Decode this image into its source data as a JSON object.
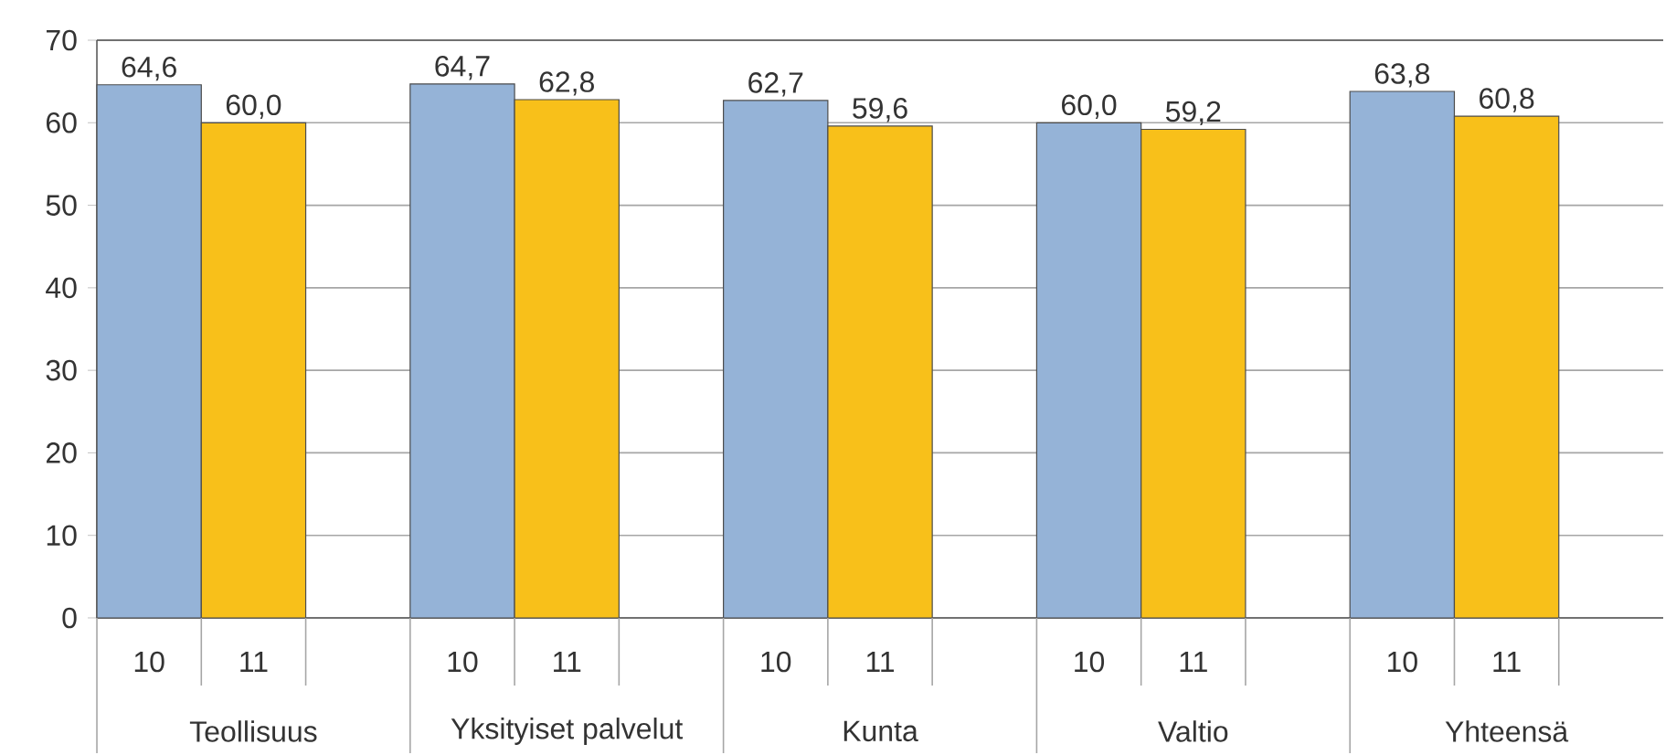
{
  "chart_data": {
    "type": "bar",
    "categories": [
      "Teollisuus",
      "Yksityiset palvelut",
      "Kunta",
      "Valtio",
      "Yhteensä"
    ],
    "series": [
      {
        "name": "10",
        "color": "#95b3d7",
        "values": [
          64.6,
          64.7,
          62.7,
          60.0,
          63.8
        ],
        "value_labels": [
          "64,6",
          "64,7",
          "62,7",
          "60,0",
          "63,8"
        ]
      },
      {
        "name": "11",
        "color": "#f8c01a",
        "values": [
          60.0,
          62.8,
          59.6,
          59.2,
          60.8
        ],
        "value_labels": [
          "60,0",
          "62,8",
          "59,6",
          "59,2",
          "60,8"
        ]
      }
    ],
    "ylim": [
      0,
      70
    ],
    "yticks": [
      0,
      10,
      20,
      30,
      40,
      50,
      60,
      70
    ],
    "grid": "y"
  }
}
